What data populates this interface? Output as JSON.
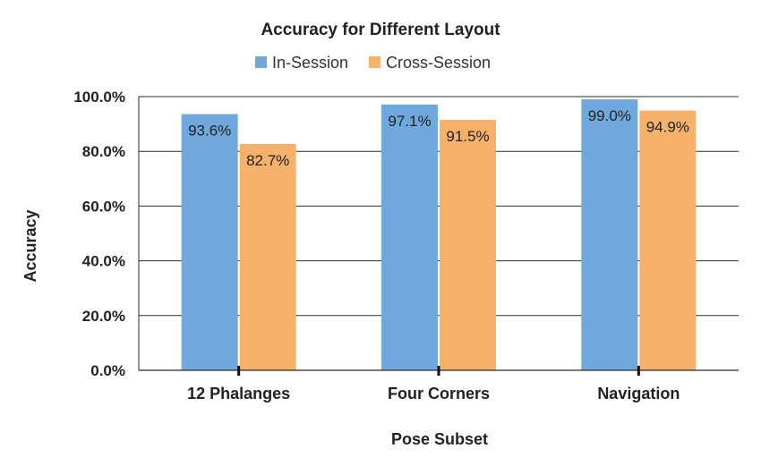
{
  "chart_data": {
    "type": "bar",
    "title": "Accuracy for Different Layout",
    "xlabel": "Pose Subset",
    "ylabel": "Accuracy",
    "categories": [
      "12 Phalanges",
      "Four Corners",
      "Navigation"
    ],
    "series": [
      {
        "name": "In-Session",
        "color": "#6fa8dc",
        "values": [
          93.6,
          97.1,
          99.0
        ],
        "labels": [
          "93.6%",
          "97.1%",
          "99.0%"
        ]
      },
      {
        "name": "Cross-Session",
        "color": "#f6b26b",
        "values": [
          82.7,
          91.5,
          94.9
        ],
        "labels": [
          "82.7%",
          "91.5%",
          "94.9%"
        ]
      }
    ],
    "ylim": [
      0,
      100
    ],
    "yticks": [
      0,
      20,
      40,
      60,
      80,
      100
    ],
    "ytick_labels": [
      "0.0%",
      "20.0%",
      "40.0%",
      "60.0%",
      "80.0%",
      "100.0%"
    ],
    "grid": true,
    "legend_position": "top-center"
  }
}
